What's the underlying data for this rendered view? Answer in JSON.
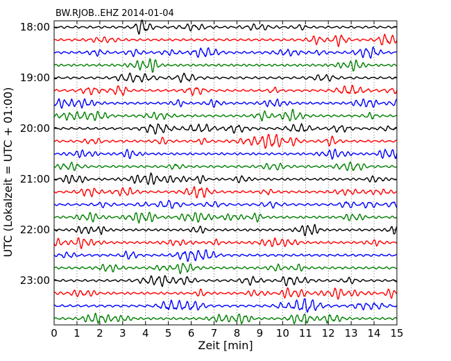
{
  "chart_data": {
    "type": "line",
    "title": "BW.RJOB..EHZ 2014-01-04",
    "xlabel": "Zeit  [min]",
    "ylabel": "UTC (Lokalzeit = UTC + 01:00)",
    "xlim": [
      0,
      15
    ],
    "x_ticks": [
      "0",
      "1",
      "2",
      "3",
      "4",
      "5",
      "6",
      "7",
      "8",
      "9",
      "10",
      "11",
      "12",
      "13",
      "14",
      "15"
    ],
    "y_tick_labels": [
      "18:00",
      "19:00",
      "20:00",
      "21:00",
      "22:00",
      "23:00"
    ],
    "trace_interval_minutes": 15,
    "start_time": "18:00",
    "num_traces": 24,
    "trace_colors": [
      "#000000",
      "#ff0000",
      "#0000ff",
      "#008000"
    ],
    "grid": true,
    "legend": "none"
  }
}
